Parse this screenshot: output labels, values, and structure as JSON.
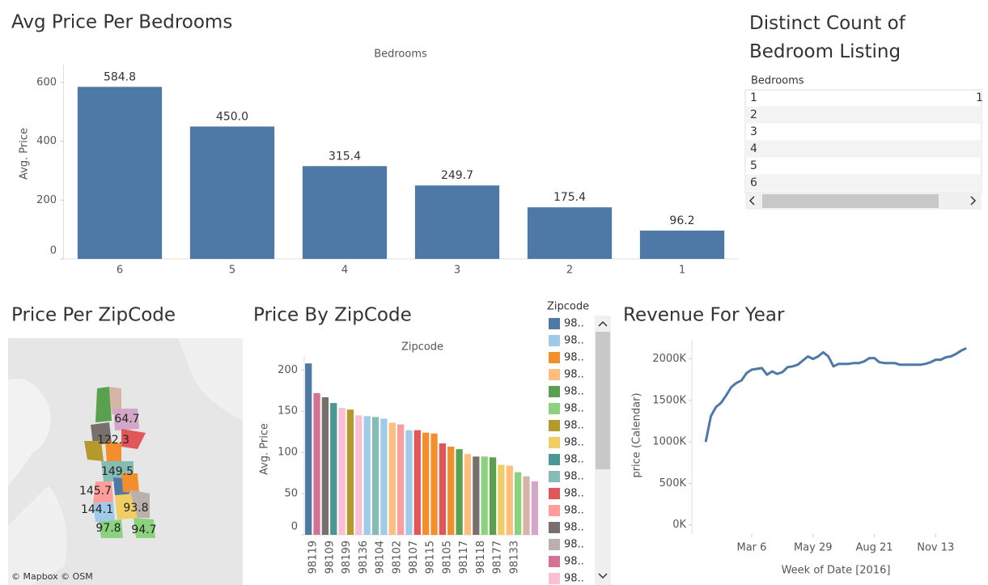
{
  "chart_data": [
    {
      "type": "bar",
      "title": "Avg Price Per Bedrooms",
      "header": "Bedrooms",
      "y_label": "Avg. Price",
      "categories": [
        "6",
        "5",
        "4",
        "3",
        "2",
        "1"
      ],
      "values": [
        584.8,
        450.0,
        315.4,
        249.7,
        175.4,
        96.2
      ],
      "value_labels": [
        "584.8",
        "450.0",
        "315.4",
        "249.7",
        "175.4",
        "96.2"
      ],
      "color": "#4e79a7",
      "ylim": [
        0,
        660
      ],
      "yticks": [
        0,
        200,
        400,
        600
      ]
    },
    {
      "type": "bar",
      "title": "Price By ZipCode",
      "header": "Zipcode",
      "y_label": "Avg. Price",
      "categories": [
        "98119",
        null,
        "98109",
        null,
        "98199",
        null,
        "98136",
        null,
        "98104",
        null,
        "98102",
        null,
        "98107",
        null,
        "98115",
        null,
        "98105",
        null,
        "98117",
        null,
        "98118",
        null,
        "98177",
        null,
        "98133",
        null,
        null,
        null
      ],
      "values": [
        208,
        172,
        167,
        160,
        154,
        152,
        145,
        144,
        143,
        141,
        136,
        134,
        127,
        127,
        124,
        123,
        111,
        107,
        104,
        98,
        95,
        95,
        94,
        85,
        84,
        76,
        71,
        65
      ],
      "colors": [
        "#4e79a7",
        "#d37295",
        "#79706e",
        "#499894",
        "#fabfd2",
        "#b6992d",
        "#fabfd2",
        "#a0cbe8",
        "#86bcb6",
        "#a0cbe8",
        "#ffbe7d",
        "#ff9d9a",
        "#a0cbe8",
        "#e15759",
        "#f28e2b",
        "#f28e2b",
        "#e15759",
        "#f28e2b",
        "#59a14f",
        "#ffbe7d",
        "#79706e",
        "#8cd17d",
        "#59a14f",
        "#f1ce63",
        "#ffbe7d",
        "#8cd17d",
        "#d7b5a6",
        "#d4a6c8"
      ],
      "ylim": [
        0,
        217
      ],
      "yticks": [
        0,
        50,
        100,
        150,
        200
      ],
      "legend": {
        "title": "Zipcode",
        "items": [
          {
            "label": "98..",
            "color": "#4e79a7"
          },
          {
            "label": "98..",
            "color": "#a0cbe8"
          },
          {
            "label": "98..",
            "color": "#f28e2b"
          },
          {
            "label": "98..",
            "color": "#ffbe7d"
          },
          {
            "label": "98..",
            "color": "#59a14f"
          },
          {
            "label": "98..",
            "color": "#8cd17d"
          },
          {
            "label": "98..",
            "color": "#b6992d"
          },
          {
            "label": "98..",
            "color": "#f1ce63"
          },
          {
            "label": "98..",
            "color": "#499894"
          },
          {
            "label": "98..",
            "color": "#86bcb6"
          },
          {
            "label": "98..",
            "color": "#e15759"
          },
          {
            "label": "98..",
            "color": "#ff9d9a"
          },
          {
            "label": "98..",
            "color": "#79706e"
          },
          {
            "label": "98..",
            "color": "#bab0ac"
          },
          {
            "label": "98..",
            "color": "#d37295"
          },
          {
            "label": "98..",
            "color": "#fabfd2"
          }
        ]
      }
    },
    {
      "type": "line",
      "title": "Revenue For Year",
      "x_label": "Week of Date [2016]",
      "y_label": "price (Calendar)",
      "color": "#4e79a7",
      "x": [
        "2016-01-03",
        "2016-01-10",
        "2016-01-17",
        "2016-01-24",
        "2016-01-31",
        "2016-02-07",
        "2016-02-14",
        "2016-02-21",
        "2016-02-28",
        "2016-03-06",
        "2016-03-13",
        "2016-03-20",
        "2016-03-27",
        "2016-04-03",
        "2016-04-10",
        "2016-04-17",
        "2016-04-24",
        "2016-05-01",
        "2016-05-08",
        "2016-05-15",
        "2016-05-22",
        "2016-05-29",
        "2016-06-05",
        "2016-06-12",
        "2016-06-19",
        "2016-06-26",
        "2016-07-03",
        "2016-07-10",
        "2016-07-17",
        "2016-07-24",
        "2016-07-31",
        "2016-08-07",
        "2016-08-14",
        "2016-08-21",
        "2016-08-28",
        "2016-09-04",
        "2016-09-11",
        "2016-09-18",
        "2016-09-25",
        "2016-10-02",
        "2016-10-09",
        "2016-10-16",
        "2016-10-23",
        "2016-10-30",
        "2016-11-06",
        "2016-11-13",
        "2016-11-20",
        "2016-11-27",
        "2016-12-04",
        "2016-12-11",
        "2016-12-18",
        "2016-12-25"
      ],
      "values": [
        1000000,
        1310000,
        1420000,
        1470000,
        1560000,
        1660000,
        1710000,
        1740000,
        1830000,
        1870000,
        1880000,
        1890000,
        1810000,
        1850000,
        1820000,
        1840000,
        1900000,
        1910000,
        1930000,
        1980000,
        2030000,
        2000000,
        2030000,
        2080000,
        2030000,
        1910000,
        1940000,
        1940000,
        1940000,
        1950000,
        1950000,
        1970000,
        2010000,
        2010000,
        1960000,
        1950000,
        1950000,
        1950000,
        1930000,
        1930000,
        1930000,
        1930000,
        1930000,
        1940000,
        1960000,
        1990000,
        1990000,
        2020000,
        2030000,
        2060000,
        2100000,
        2130000
      ],
      "xlim": [
        "2015-12-15",
        "2017-01-06"
      ],
      "xticks": [
        {
          "value": "2016-03-06",
          "label": "Mar 6"
        },
        {
          "value": "2016-05-29",
          "label": "May 29"
        },
        {
          "value": "2016-08-21",
          "label": "Aug 21"
        },
        {
          "value": "2016-11-13",
          "label": "Nov 13"
        }
      ],
      "ylim": [
        -110000,
        2230000
      ],
      "yticks": [
        {
          "value": 0,
          "label": "0K"
        },
        {
          "value": 500000,
          "label": "500K"
        },
        {
          "value": 1000000,
          "label": "1000K"
        },
        {
          "value": 1500000,
          "label": "1500K"
        },
        {
          "value": 2000000,
          "label": "2000K"
        }
      ]
    }
  ],
  "map": {
    "title": "Price Per ZipCode",
    "labels": [
      "64.7",
      "122.3",
      "149.5",
      "145.7",
      "144.1",
      "93.8",
      "97.8",
      "94.7"
    ],
    "attribution": "© Mapbox © OSM"
  },
  "table": {
    "title": "Distinct Count of Bedroom Listing",
    "header": "Bedrooms",
    "rows": [
      "1",
      "2",
      "3",
      "4",
      "5",
      "6"
    ],
    "cells": [
      "1"
    ]
  }
}
